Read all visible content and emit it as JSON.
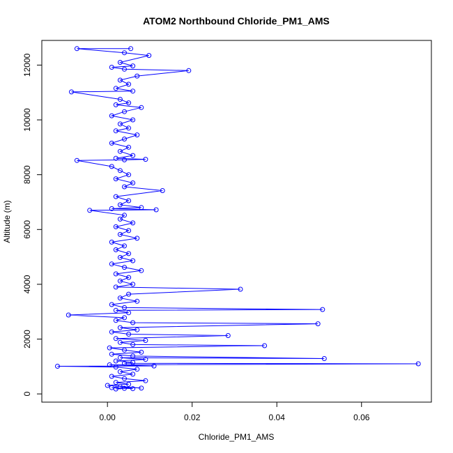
{
  "chart_data": {
    "type": "scatter",
    "title": "ATOM2 Northbound Chloride_PM1_AMS",
    "xlabel": "Chloride_PM1_AMS",
    "ylabel": "Altitude (m)",
    "xlim": [
      -0.0155,
      0.0765
    ],
    "ylim": [
      -300,
      12900
    ],
    "xticks": [
      0.0,
      0.02,
      0.04,
      0.06
    ],
    "xtick_labels": [
      "0.00",
      "0.02",
      "0.04",
      "0.06"
    ],
    "yticks": [
      0,
      2000,
      4000,
      6000,
      8000,
      10000,
      12000
    ],
    "ytick_labels": [
      "0",
      "2000",
      "4000",
      "6000",
      "8000",
      "10000",
      "12000"
    ],
    "grid": false,
    "legend": "none",
    "color": "#0000ff",
    "marker": "open-circle",
    "connected": true,
    "series": [
      {
        "points": [
          [
            0.002,
            180
          ],
          [
            0.004,
            200
          ],
          [
            0.001,
            230
          ],
          [
            0.006,
            190
          ],
          [
            0.003,
            260
          ],
          [
            0.008,
            210
          ],
          [
            0.0,
            310
          ],
          [
            0.005,
            350
          ],
          [
            0.002,
            420
          ],
          [
            0.009,
            480
          ],
          [
            0.004,
            560
          ],
          [
            0.001,
            640
          ],
          [
            0.006,
            720
          ],
          [
            0.003,
            810
          ],
          [
            0.007,
            900
          ],
          [
            0.002,
            980
          ],
          [
            -0.0118,
            1010
          ],
          [
            0.011,
            1020
          ],
          [
            0.0005,
            1060
          ],
          [
            0.0734,
            1100
          ],
          [
            0.004,
            1120
          ],
          [
            0.006,
            1150
          ],
          [
            0.002,
            1200
          ],
          [
            0.009,
            1260
          ],
          [
            0.003,
            1320
          ],
          [
            0.0512,
            1290
          ],
          [
            0.006,
            1380
          ],
          [
            0.001,
            1450
          ],
          [
            0.008,
            1520
          ],
          [
            0.004,
            1600
          ],
          [
            0.0005,
            1680
          ],
          [
            0.0371,
            1760
          ],
          [
            0.006,
            1800
          ],
          [
            0.003,
            1880
          ],
          [
            0.009,
            1950
          ],
          [
            0.002,
            2020
          ],
          [
            0.0285,
            2130
          ],
          [
            0.005,
            2180
          ],
          [
            0.001,
            2260
          ],
          [
            0.007,
            2340
          ],
          [
            0.003,
            2420
          ],
          [
            0.0497,
            2560
          ],
          [
            0.006,
            2600
          ],
          [
            0.002,
            2680
          ],
          [
            0.004,
            2780
          ],
          [
            -0.0092,
            2880
          ],
          [
            0.005,
            2960
          ],
          [
            0.002,
            3050
          ],
          [
            0.0508,
            3080
          ],
          [
            0.004,
            3150
          ],
          [
            0.001,
            3260
          ],
          [
            0.007,
            3380
          ],
          [
            0.003,
            3500
          ],
          [
            0.005,
            3640
          ],
          [
            0.0314,
            3820
          ],
          [
            0.002,
            3900
          ],
          [
            0.006,
            4000
          ],
          [
            0.003,
            4120
          ],
          [
            0.005,
            4250
          ],
          [
            0.002,
            4380
          ],
          [
            0.008,
            4500
          ],
          [
            0.004,
            4620
          ],
          [
            0.001,
            4740
          ],
          [
            0.006,
            4860
          ],
          [
            0.003,
            4980
          ],
          [
            0.005,
            5120
          ],
          [
            0.002,
            5260
          ],
          [
            0.004,
            5400
          ],
          [
            0.001,
            5540
          ],
          [
            0.007,
            5680
          ],
          [
            0.003,
            5820
          ],
          [
            0.005,
            5960
          ],
          [
            0.002,
            6100
          ],
          [
            0.006,
            6240
          ],
          [
            0.003,
            6380
          ],
          [
            0.004,
            6520
          ],
          [
            -0.0042,
            6700
          ],
          [
            0.0115,
            6720
          ],
          [
            0.001,
            6760
          ],
          [
            0.008,
            6800
          ],
          [
            0.003,
            6900
          ],
          [
            0.005,
            7050
          ],
          [
            0.002,
            7200
          ],
          [
            0.013,
            7420
          ],
          [
            0.004,
            7560
          ],
          [
            0.006,
            7700
          ],
          [
            0.002,
            7850
          ],
          [
            0.005,
            8000
          ],
          [
            0.003,
            8150
          ],
          [
            0.001,
            8300
          ],
          [
            -0.0072,
            8520
          ],
          [
            0.004,
            8540
          ],
          [
            0.009,
            8560
          ],
          [
            0.002,
            8600
          ],
          [
            0.006,
            8700
          ],
          [
            0.003,
            8850
          ],
          [
            0.005,
            9000
          ],
          [
            0.001,
            9150
          ],
          [
            0.004,
            9300
          ],
          [
            0.007,
            9450
          ],
          [
            0.002,
            9600
          ],
          [
            0.005,
            9700
          ],
          [
            0.003,
            9850
          ],
          [
            0.006,
            10000
          ],
          [
            0.001,
            10150
          ],
          [
            0.004,
            10300
          ],
          [
            0.008,
            10450
          ],
          [
            0.002,
            10550
          ],
          [
            0.005,
            10620
          ],
          [
            0.003,
            10750
          ],
          [
            -0.0085,
            11020
          ],
          [
            0.006,
            11050
          ],
          [
            0.002,
            11150
          ],
          [
            0.005,
            11300
          ],
          [
            0.003,
            11450
          ],
          [
            0.007,
            11600
          ],
          [
            0.0192,
            11800
          ],
          [
            0.004,
            11850
          ],
          [
            0.001,
            11920
          ],
          [
            0.006,
            11970
          ],
          [
            0.003,
            12100
          ],
          [
            0.0098,
            12350
          ],
          [
            0.004,
            12450
          ],
          [
            -0.0072,
            12600
          ],
          [
            0.0055,
            12600
          ]
        ]
      }
    ]
  }
}
